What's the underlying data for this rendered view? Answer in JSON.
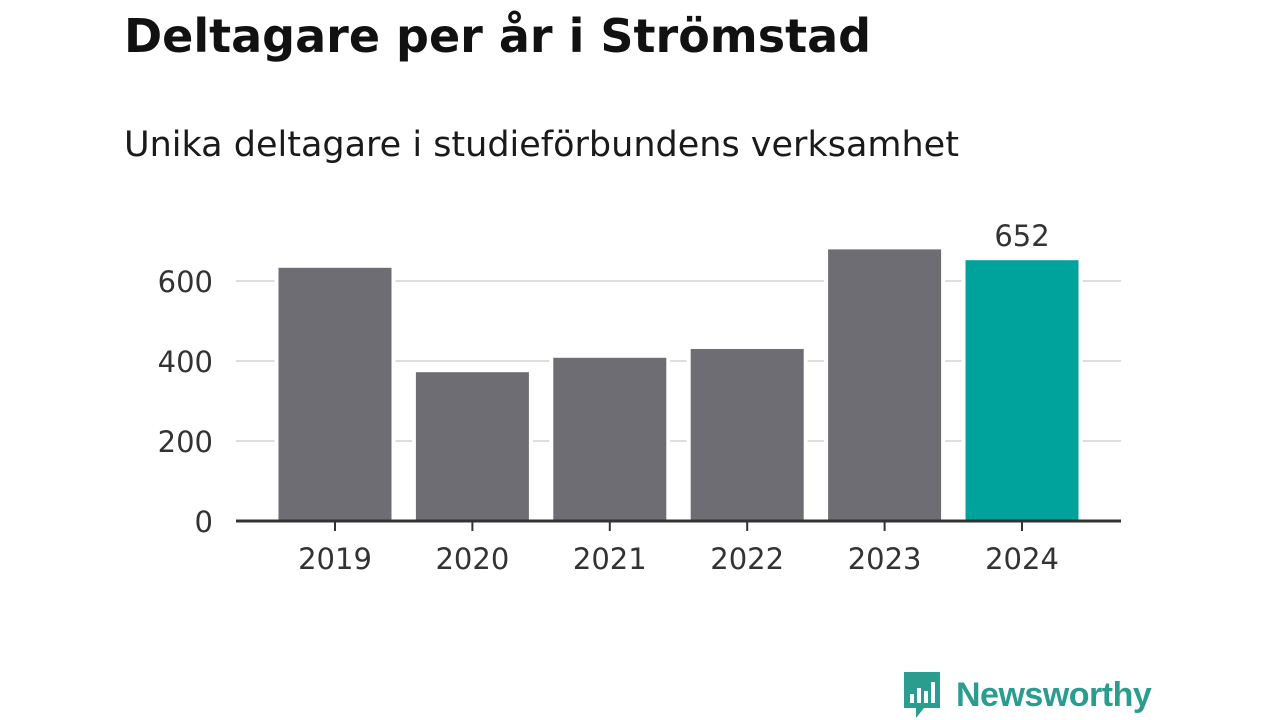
{
  "title": "Deltagare per år i Strömstad",
  "subtitle": "Unika deltagare i studieförbundens verksamhet",
  "logo": {
    "text": "Newsworthy",
    "color": "#2a9d8f",
    "icon": "bar-chart-speech-bubble-icon"
  },
  "colors": {
    "bar": "#6e6d73",
    "highlight": "#00a39b",
    "grid": "#dddddd",
    "axis": "#333333"
  },
  "chart_data": {
    "type": "bar",
    "title": "Deltagare per år i Strömstad",
    "subtitle": "Unika deltagare i studieförbundens verksamhet",
    "categories": [
      "2019",
      "2020",
      "2021",
      "2022",
      "2023",
      "2024"
    ],
    "values": [
      633,
      372,
      408,
      430,
      679,
      652
    ],
    "highlight_index": 5,
    "data_labels": [
      {
        "index": 5,
        "text": "652"
      }
    ],
    "yticks": [
      0,
      200,
      400,
      600
    ],
    "ytick_labels": [
      "0",
      "200",
      "400",
      "600"
    ],
    "ylim": [
      0,
      680
    ],
    "grid": true,
    "xlabel": "",
    "ylabel": ""
  }
}
